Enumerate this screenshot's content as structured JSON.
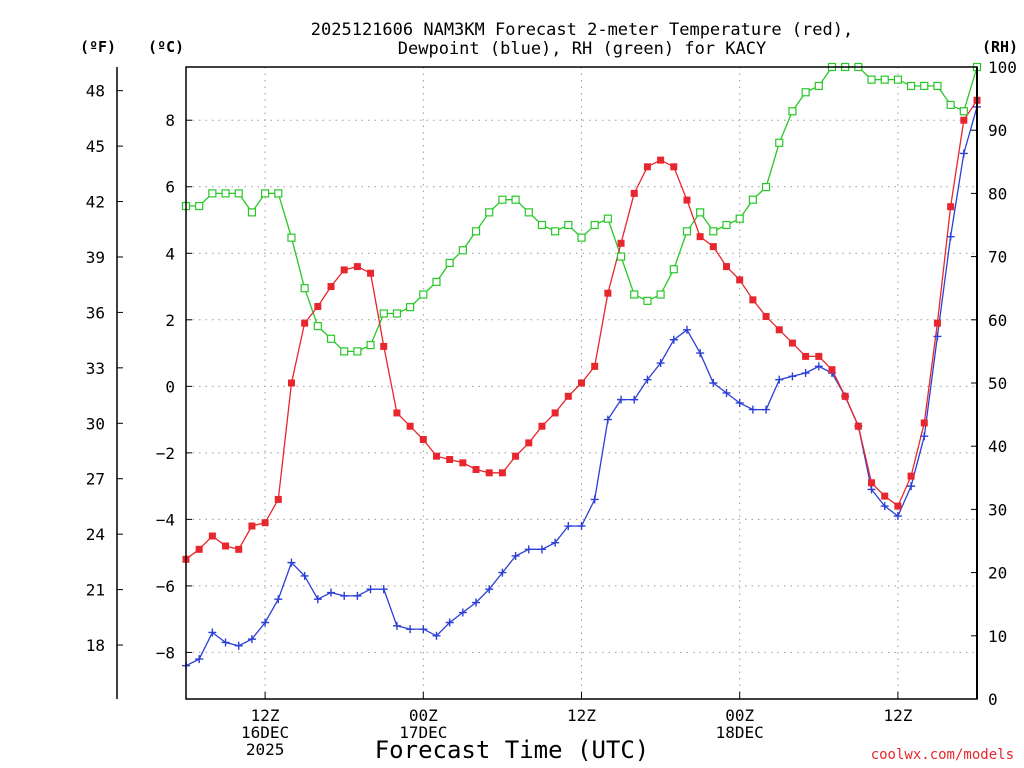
{
  "chart_data": {
    "type": "line",
    "title": "2025121606 NAM3KM Forecast 2-meter Temperature (red),",
    "title_line2": "Dewpoint (blue), RH (green) for KACY",
    "xlabel": "Forecast Time (UTC)",
    "left_unit_label": "(ºF)",
    "celsius_unit_label": "(ºC)",
    "right_unit_label": "(RH)",
    "credit": "coolwx.com/models",
    "x_unit": "forecast hour (0 = 2025-12-16 06Z)",
    "x_range": [
      0,
      60
    ],
    "y_celsius_range": [
      -9.4,
      9.6
    ],
    "rh_range": [
      0,
      100
    ],
    "x_ticks": [
      {
        "x": 6,
        "line1": "12Z",
        "line2": "16DEC",
        "line3": "2025"
      },
      {
        "x": 18,
        "line1": "00Z",
        "line2": "17DEC",
        "line3": ""
      },
      {
        "x": 30,
        "line1": "12Z",
        "line2": "",
        "line3": ""
      },
      {
        "x": 42,
        "line1": "00Z",
        "line2": "18DEC",
        "line3": ""
      },
      {
        "x": 54,
        "line1": "12Z",
        "line2": "",
        "line3": ""
      }
    ],
    "celsius_ticks": [
      {
        "value": 8,
        "label": "8"
      },
      {
        "value": 6,
        "label": "6"
      },
      {
        "value": 4,
        "label": "4"
      },
      {
        "value": 2,
        "label": "2"
      },
      {
        "value": 0,
        "label": "0"
      },
      {
        "value": -2,
        "label": "−2"
      },
      {
        "value": -4,
        "label": "−4"
      },
      {
        "value": -6,
        "label": "−6"
      },
      {
        "value": -8,
        "label": "−8"
      }
    ],
    "fahrenheit_ticks": [
      "48",
      "45",
      "42",
      "39",
      "36",
      "33",
      "30",
      "27",
      "24",
      "21",
      "18"
    ],
    "rh_ticks": [
      "100",
      "90",
      "80",
      "70",
      "60",
      "50",
      "40",
      "30",
      "20",
      "10",
      "0"
    ],
    "series": [
      {
        "name": "2-meter Temperature",
        "color": "#e8262d",
        "marker": "filled-square",
        "values": [
          -5.2,
          -4.9,
          -4.5,
          -4.8,
          -4.9,
          -4.2,
          -4.1,
          -3.4,
          0.1,
          1.9,
          2.4,
          3.0,
          3.5,
          3.6,
          3.4,
          1.2,
          -0.8,
          -1.2,
          -1.6,
          -2.1,
          -2.2,
          -2.3,
          -2.5,
          -2.6,
          -2.6,
          -2.1,
          -1.7,
          -1.2,
          -0.8,
          -0.3,
          0.1,
          0.6,
          2.8,
          4.3,
          5.8,
          6.6,
          6.8,
          6.6,
          5.6,
          4.5,
          4.2,
          3.6,
          3.2,
          2.6,
          2.1,
          1.7,
          1.3,
          0.9,
          0.9,
          0.5,
          -0.3,
          -1.2,
          -2.9,
          -3.3,
          -3.6,
          -2.7,
          -1.1,
          1.9,
          5.4,
          8.0,
          8.6
        ]
      },
      {
        "name": "Dewpoint",
        "color": "#2b3fd6",
        "marker": "plus",
        "values": [
          -8.4,
          -8.2,
          -7.4,
          -7.7,
          -7.8,
          -7.6,
          -7.1,
          -6.4,
          -5.3,
          -5.7,
          -6.4,
          -6.2,
          -6.3,
          -6.3,
          -6.1,
          -6.1,
          -7.2,
          -7.3,
          -7.3,
          -7.5,
          -7.1,
          -6.8,
          -6.5,
          -6.1,
          -5.6,
          -5.1,
          -4.9,
          -4.9,
          -4.7,
          -4.2,
          -4.2,
          -3.4,
          -1.0,
          -0.4,
          -0.4,
          0.2,
          0.7,
          1.4,
          1.7,
          1.0,
          0.1,
          -0.2,
          -0.5,
          -0.7,
          -0.7,
          0.2,
          0.3,
          0.4,
          0.6,
          0.4,
          -0.3,
          -1.2,
          -3.1,
          -3.6,
          -3.9,
          -3.0,
          -1.5,
          1.5,
          4.5,
          7.0,
          8.4
        ]
      },
      {
        "name": "RH",
        "color": "#27c827",
        "marker": "open-square",
        "axis": "right",
        "values": [
          78,
          78,
          80,
          80,
          80,
          77,
          80,
          80,
          73,
          65,
          59,
          57,
          55,
          55,
          56,
          61,
          61,
          62,
          64,
          66,
          69,
          71,
          74,
          77,
          79,
          79,
          77,
          75,
          74,
          75,
          73,
          75,
          76,
          70,
          64,
          63,
          64,
          68,
          74,
          77,
          74,
          75,
          76,
          79,
          81,
          88,
          93,
          96,
          97,
          100,
          100,
          100,
          98,
          98,
          98,
          97,
          97,
          97,
          94,
          93,
          100
        ]
      }
    ]
  }
}
